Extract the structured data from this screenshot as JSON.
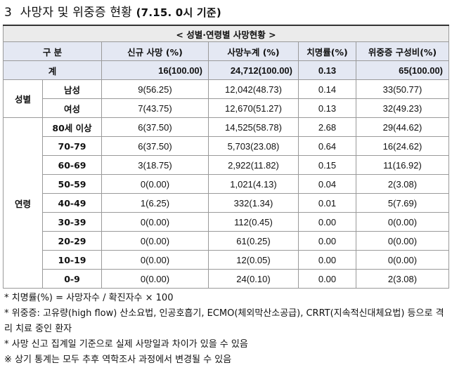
{
  "title": {
    "number": "3",
    "main": "사망자 및 위중증 현황",
    "sub": "(7.15. 0시 기준)"
  },
  "table": {
    "caption": "< 성별·연령별 사망현황 >",
    "headers": [
      "구 분",
      "신규 사망    (%)",
      "사망누계    (%)",
      "치명률(%)",
      "위중증  구성비(%)"
    ],
    "total": {
      "label": "계",
      "new_deaths": "16(100.00)",
      "cumulative": "24,712(100.00)",
      "fatality": "0.13",
      "severe": "65(100.00)"
    },
    "sex_group": "성별",
    "sex_rows": [
      {
        "label": "남성",
        "new_deaths": "9(56.25)",
        "cumulative": "12,042(48.73)",
        "fatality": "0.14",
        "severe": "33(50.77)"
      },
      {
        "label": "여성",
        "new_deaths": "7(43.75)",
        "cumulative": "12,670(51.27)",
        "fatality": "0.13",
        "severe": "32(49.23)"
      }
    ],
    "age_group": "연령",
    "age_rows": [
      {
        "label": "80세 이상",
        "new_deaths": "6(37.50)",
        "cumulative": "14,525(58.78)",
        "fatality": "2.68",
        "severe": "29(44.62)"
      },
      {
        "label": "70-79",
        "new_deaths": "6(37.50)",
        "cumulative": "5,703(23.08)",
        "fatality": "0.64",
        "severe": "16(24.62)"
      },
      {
        "label": "60-69",
        "new_deaths": "3(18.75)",
        "cumulative": "2,922(11.82)",
        "fatality": "0.15",
        "severe": "11(16.92)"
      },
      {
        "label": "50-59",
        "new_deaths": "0(0.00)",
        "cumulative": "1,021(4.13)",
        "fatality": "0.04",
        "severe": "2(3.08)"
      },
      {
        "label": "40-49",
        "new_deaths": "1(6.25)",
        "cumulative": "332(1.34)",
        "fatality": "0.01",
        "severe": "5(7.69)"
      },
      {
        "label": "30-39",
        "new_deaths": "0(0.00)",
        "cumulative": "112(0.45)",
        "fatality": "0.00",
        "severe": "0(0.00)"
      },
      {
        "label": "20-29",
        "new_deaths": "0(0.00)",
        "cumulative": "61(0.25)",
        "fatality": "0.00",
        "severe": "0(0.00)"
      },
      {
        "label": "10-19",
        "new_deaths": "0(0.00)",
        "cumulative": "12(0.05)",
        "fatality": "0.00",
        "severe": "0(0.00)"
      },
      {
        "label": "0-9",
        "new_deaths": "0(0.00)",
        "cumulative": "24(0.10)",
        "fatality": "0.00",
        "severe": "2(3.08)"
      }
    ]
  },
  "notes": [
    "* 치명률(%) = 사망자수 / 확진자수 × 100",
    "* 위중증: 고유량(high flow) 산소요법, 인공호흡기, ECMO(체외막산소공급), CRRT(지속적신대체요법) 등으로 격리 치료 중인 환자",
    "* 사망 신고 집계일 기준으로 실제 사망일과 차이가 있을 수 있음",
    "※ 상기 통계는 모두 추후 역학조사 과정에서 변경될 수 있음"
  ]
}
